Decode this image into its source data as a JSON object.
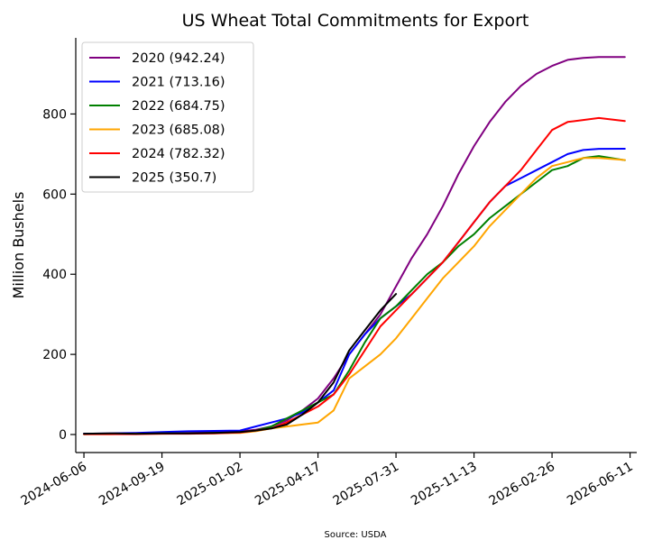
{
  "chart_data": {
    "type": "line",
    "title": "US Wheat Total Commitments for Export",
    "ylabel": "Million Bushels",
    "xlabel": "",
    "source": "Source: USDA",
    "ylim": [
      -45,
      990
    ],
    "xlim": [
      "2024-05-26",
      "2026-06-20"
    ],
    "y_ticks": [
      0,
      200,
      400,
      600,
      800
    ],
    "x_ticks": [
      "2024-06-06",
      "2024-09-19",
      "2025-01-02",
      "2025-04-17",
      "2025-07-31",
      "2025-11-13",
      "2026-02-26",
      "2026-06-11"
    ],
    "grid": false,
    "legend_position": "top-left",
    "series": [
      {
        "name": "2020 (942.24)",
        "color": "#800080",
        "x": [
          "2024-06-06",
          "2024-07-11",
          "2024-08-15",
          "2024-09-19",
          "2024-10-24",
          "2024-11-28",
          "2025-01-02",
          "2025-01-23",
          "2025-02-13",
          "2025-03-06",
          "2025-03-27",
          "2025-04-17",
          "2025-05-08",
          "2025-05-29",
          "2025-06-19",
          "2025-07-10",
          "2025-07-31",
          "2025-08-21",
          "2025-09-11",
          "2025-10-02",
          "2025-10-23",
          "2025-11-13",
          "2025-12-04",
          "2025-12-25",
          "2026-01-15",
          "2026-02-05",
          "2026-02-26",
          "2026-03-19",
          "2026-04-09",
          "2026-04-30",
          "2026-06-04"
        ],
        "y": [
          2,
          2,
          3,
          4,
          5,
          6,
          8,
          12,
          20,
          35,
          60,
          90,
          140,
          200,
          250,
          300,
          370,
          440,
          500,
          570,
          650,
          720,
          780,
          830,
          870,
          900,
          920,
          935,
          940,
          942,
          942.24
        ]
      },
      {
        "name": "2021 (713.16)",
        "color": "#0000ff",
        "x": [
          "2024-06-06",
          "2024-07-11",
          "2024-08-15",
          "2024-09-19",
          "2024-10-24",
          "2024-11-28",
          "2025-01-02",
          "2025-01-23",
          "2025-02-13",
          "2025-03-06",
          "2025-03-27",
          "2025-04-17",
          "2025-05-08",
          "2025-05-29",
          "2025-06-19",
          "2025-07-10",
          "2025-07-31",
          "2025-08-21",
          "2025-09-11",
          "2025-10-02",
          "2025-10-23",
          "2025-11-13",
          "2025-12-04",
          "2025-12-25",
          "2026-01-15",
          "2026-02-05",
          "2026-02-26",
          "2026-03-19",
          "2026-04-09",
          "2026-04-30",
          "2026-06-04"
        ],
        "y": [
          2,
          3,
          4,
          6,
          8,
          9,
          10,
          20,
          30,
          40,
          55,
          80,
          110,
          200,
          250,
          290,
          320,
          350,
          390,
          430,
          480,
          530,
          580,
          620,
          640,
          660,
          680,
          700,
          710,
          713,
          713.16
        ]
      },
      {
        "name": "2022 (684.75)",
        "color": "#008000",
        "x": [
          "2024-06-06",
          "2024-07-11",
          "2024-08-15",
          "2024-09-19",
          "2024-10-24",
          "2024-11-28",
          "2025-01-02",
          "2025-01-23",
          "2025-02-13",
          "2025-03-06",
          "2025-03-27",
          "2025-04-17",
          "2025-05-08",
          "2025-05-29",
          "2025-06-19",
          "2025-07-10",
          "2025-07-31",
          "2025-08-21",
          "2025-09-11",
          "2025-10-02",
          "2025-10-23",
          "2025-11-13",
          "2025-12-04",
          "2025-12-25",
          "2026-01-15",
          "2026-02-05",
          "2026-02-26",
          "2026-03-19",
          "2026-04-09",
          "2026-04-30",
          "2026-06-04"
        ],
        "y": [
          1,
          2,
          2,
          3,
          3,
          4,
          5,
          10,
          20,
          40,
          60,
          80,
          100,
          160,
          230,
          290,
          320,
          360,
          400,
          430,
          470,
          500,
          540,
          570,
          600,
          630,
          660,
          670,
          690,
          695,
          684.75
        ]
      },
      {
        "name": "2023 (685.08)",
        "color": "#ffa500",
        "x": [
          "2024-06-06",
          "2024-07-11",
          "2024-08-15",
          "2024-09-19",
          "2024-10-24",
          "2024-11-28",
          "2025-01-02",
          "2025-01-23",
          "2025-02-13",
          "2025-03-06",
          "2025-03-27",
          "2025-04-17",
          "2025-05-08",
          "2025-05-29",
          "2025-06-19",
          "2025-07-10",
          "2025-07-31",
          "2025-08-21",
          "2025-09-11",
          "2025-10-02",
          "2025-10-23",
          "2025-11-13",
          "2025-12-04",
          "2025-12-25",
          "2026-01-15",
          "2026-02-05",
          "2026-02-26",
          "2026-03-19",
          "2026-04-09",
          "2026-04-30",
          "2026-06-04"
        ],
        "y": [
          1,
          1,
          2,
          2,
          3,
          3,
          4,
          8,
          15,
          20,
          25,
          30,
          60,
          140,
          170,
          200,
          240,
          290,
          340,
          390,
          430,
          470,
          520,
          560,
          600,
          640,
          670,
          680,
          690,
          690,
          685.08
        ]
      },
      {
        "name": "2024 (782.32)",
        "color": "#ff0000",
        "x": [
          "2024-06-06",
          "2024-07-11",
          "2024-08-15",
          "2024-09-19",
          "2024-10-24",
          "2024-11-28",
          "2025-01-02",
          "2025-01-23",
          "2025-02-13",
          "2025-03-06",
          "2025-03-27",
          "2025-04-17",
          "2025-05-08",
          "2025-05-29",
          "2025-06-19",
          "2025-07-10",
          "2025-07-31",
          "2025-08-21",
          "2025-09-11",
          "2025-10-02",
          "2025-10-23",
          "2025-11-13",
          "2025-12-04",
          "2025-12-25",
          "2026-01-15",
          "2026-02-05",
          "2026-02-26",
          "2026-03-19",
          "2026-04-09",
          "2026-04-30",
          "2026-06-04"
        ],
        "y": [
          1,
          1,
          1,
          2,
          2,
          3,
          5,
          10,
          15,
          30,
          50,
          70,
          100,
          150,
          210,
          270,
          310,
          350,
          390,
          430,
          480,
          530,
          580,
          620,
          660,
          710,
          760,
          780,
          785,
          790,
          782.32
        ]
      },
      {
        "name": "2025 (350.7)",
        "color": "#000000",
        "x": [
          "2024-06-06",
          "2024-07-11",
          "2024-08-15",
          "2024-09-19",
          "2024-10-24",
          "2024-11-28",
          "2025-01-02",
          "2025-01-23",
          "2025-02-13",
          "2025-03-06",
          "2025-03-27",
          "2025-04-17",
          "2025-05-08",
          "2025-05-29",
          "2025-06-19",
          "2025-07-10",
          "2025-07-31"
        ],
        "y": [
          2,
          3,
          2,
          3,
          3,
          4,
          6,
          10,
          15,
          25,
          50,
          80,
          130,
          210,
          260,
          310,
          350.7
        ]
      }
    ]
  }
}
